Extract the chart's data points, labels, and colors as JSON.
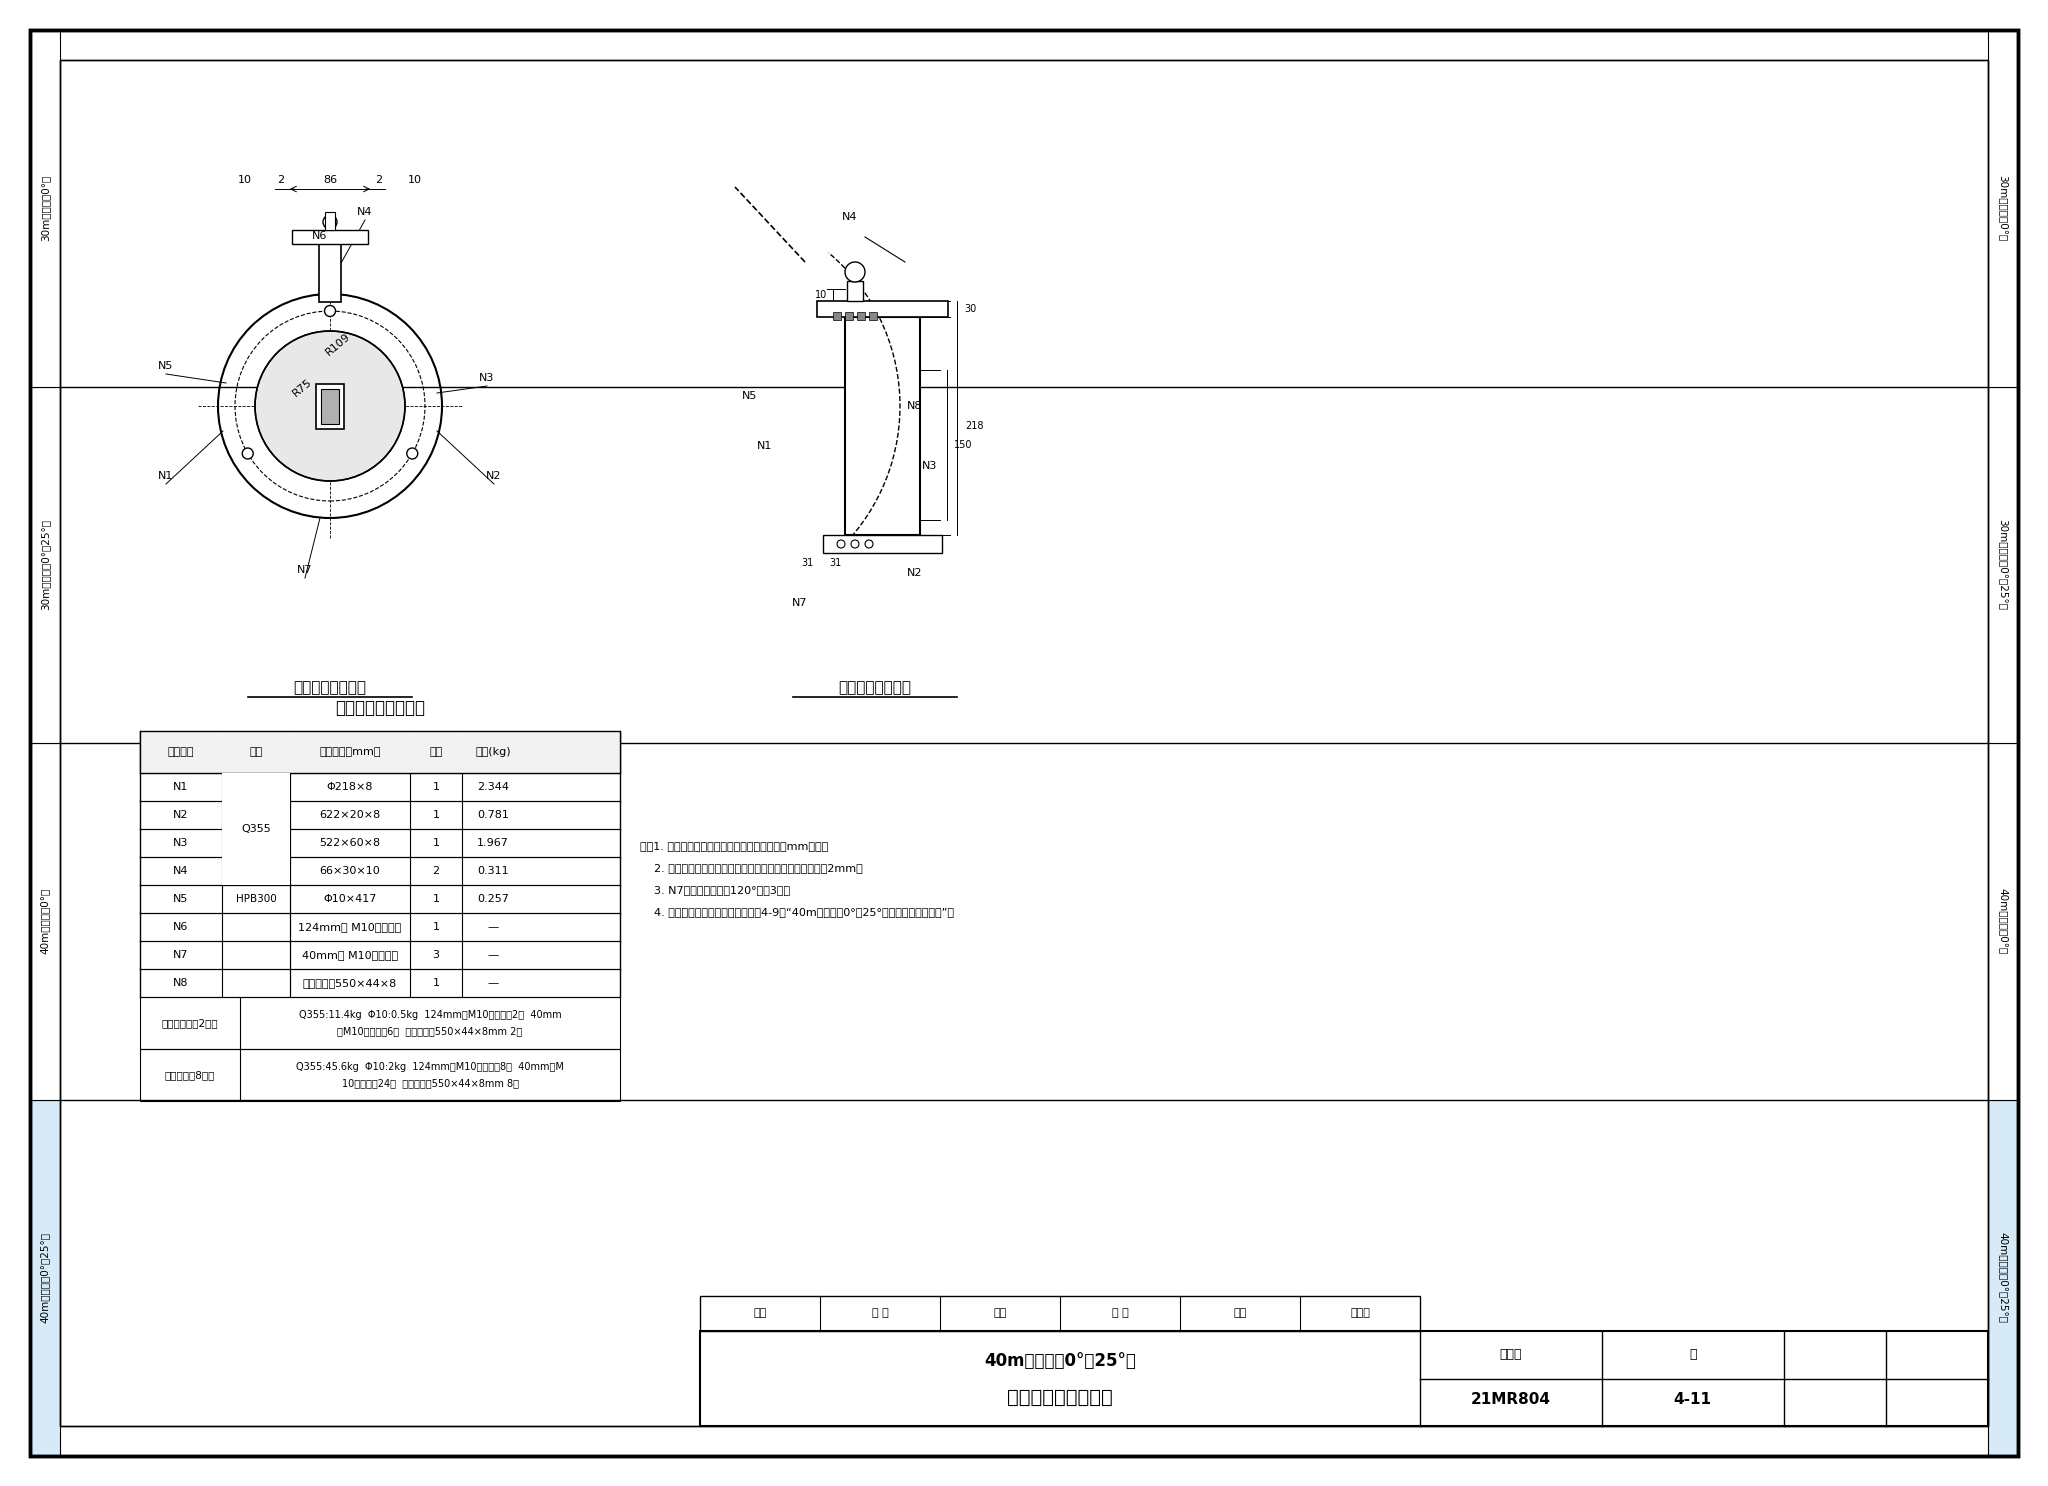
{
  "title": "波腹板检查孔构造图",
  "subtitle": "40m跨（斜剥0°～25°）",
  "figure_no": "21MR804",
  "page_no": "4-11",
  "bg_color": "#ffffff",
  "light_blue": "#d6eaf8",
  "left_labels": [
    "30m跨（斜剥0°）",
    "30m跨（斜剥0°～25°）",
    "40m跨（斜剥0°）",
    "40m跨（斜剥0°～25°）"
  ],
  "right_labels": [
    "30m跨（斜剥0°）",
    "30m跨（斜剥0°～25°）",
    "40m跨（斜剥0°）",
    "40m跨（斜剥0°～25°）"
  ],
  "front_view_title": "检查孔构造图立面",
  "side_view_title": "检查孔构造图侧面",
  "table_title": "波腹板检查孔数量表",
  "table_headers": [
    "材料编号",
    "材质",
    "材料规格（mm）",
    "数量",
    "重量(kg)"
  ],
  "table_rows": [
    [
      "N1",
      "",
      "Φ218×8",
      "1",
      "2.344"
    ],
    [
      "N2",
      "Q355",
      "622×20×8",
      "1",
      "0.781"
    ],
    [
      "N3",
      "",
      "522×60×8",
      "1",
      "1.967"
    ],
    [
      "N4",
      "",
      "66×30×10",
      "2",
      "0.311"
    ],
    [
      "N5",
      "HPB300",
      "Φ10×417",
      "1",
      "0.257"
    ],
    [
      "N6",
      "",
      "124mm长 M10普通赚栓",
      "1",
      "—"
    ],
    [
      "N7",
      "",
      "40mm长 M10普通赚栓",
      "3",
      "—"
    ],
    [
      "N8",
      "",
      "密封橡胶条550×44×8",
      "1",
      "—"
    ]
  ],
  "summary_row1_label": "单片累合计（2个）",
  "summary_row1_content": "Q355:11.4kg  Φ10:0.5kg  124mm长M10普通赚栓2套  40mm长M10普通赚栓6套  密封橡胶条550×44×8mm 2个",
  "summary_row2_label": "单跨合计（8个）",
  "summary_row2_content": "Q355:45.6kg  Φ10:2kg  124mm长M10普通赚栓8套  40mm长M10普通赚栓24套  密封橡胶条550×44×8mm 8个",
  "note1": "注：1. 本图尺寸除特殊说明外，其余均以毫米（mm）计；",
  "note2": "    2. 钉板焊接采用粘角焊缝，焊脚高度为被焊板件厚度减去2mm；",
  "note3": "    3. N7赚栓按径向角度120°设罩3处；",
  "note4": "    4. 检查孔构设置位置详见本图集第4-9页“40m跨（斜剥0°～25°）主要波腹板构造图”。",
  "sig_labels": [
    "审核",
    "余 龙",
    "校对",
    "蒋 华",
    "设计",
    "蒋大农"
  ]
}
